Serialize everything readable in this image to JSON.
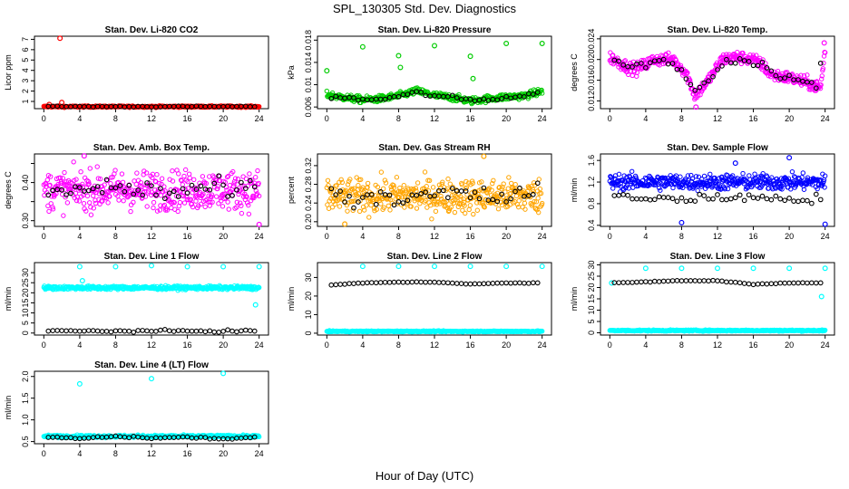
{
  "figure": {
    "title": "SPL_130305  Std. Dev. Diagnostics",
    "xlabel": "Hour of Day (UTC)"
  },
  "colors": {
    "co2": "#ff0000",
    "pressure": "#00cc00",
    "temp": "#ff00ff",
    "rh": "#ffa500",
    "flow": "#0000ff",
    "line": "#00ffff",
    "mean": "#000000"
  },
  "chart_data": [
    {
      "type": "scatter",
      "title": "Stan. Dev. Li-820 CO2",
      "ylabel": "Licor ppm",
      "xlim": [
        0,
        24
      ],
      "ylim": [
        0.3,
        7.3
      ],
      "xticks": [
        "0",
        "4",
        "8",
        "12",
        "16",
        "20",
        "24"
      ],
      "yticks": [
        1,
        2,
        3,
        4,
        5,
        6,
        7
      ],
      "color": "co2",
      "baseline": 0.5,
      "spread": 0.05,
      "outliers": [
        {
          "x": 1.8,
          "y": 7.1
        },
        {
          "x": 0.6,
          "y": 0.7
        },
        {
          "x": 2.0,
          "y": 0.9
        }
      ],
      "mean_series": [
        {
          "x": 0.5,
          "y": 0.5
        },
        {
          "x": 4,
          "y": 0.5
        },
        {
          "x": 8,
          "y": 0.5
        },
        {
          "x": 12,
          "y": 0.5
        },
        {
          "x": 16,
          "y": 0.5
        },
        {
          "x": 20,
          "y": 0.5
        },
        {
          "x": 23.8,
          "y": 0.5
        }
      ]
    },
    {
      "type": "scatter",
      "title": "Stan. Dev. Li-820 Pressure",
      "ylabel": "kPa",
      "xlim": [
        0,
        24
      ],
      "ylim": [
        0.0057,
        0.0187
      ],
      "xticks": [
        "0",
        "4",
        "8",
        "12",
        "16",
        "20",
        "24"
      ],
      "yticks": [
        0.006,
        0.01,
        0.014,
        0.018
      ],
      "color": "pressure",
      "baseline_series": [
        {
          "x": 0,
          "y": 0.0082
        },
        {
          "x": 2,
          "y": 0.0077
        },
        {
          "x": 4,
          "y": 0.0073
        },
        {
          "x": 6,
          "y": 0.0075
        },
        {
          "x": 8,
          "y": 0.008
        },
        {
          "x": 10,
          "y": 0.0089
        },
        {
          "x": 12,
          "y": 0.0081
        },
        {
          "x": 14,
          "y": 0.0077
        },
        {
          "x": 16,
          "y": 0.0071
        },
        {
          "x": 18,
          "y": 0.0075
        },
        {
          "x": 20,
          "y": 0.0078
        },
        {
          "x": 22,
          "y": 0.008
        },
        {
          "x": 24,
          "y": 0.0088
        }
      ],
      "spread": 0.0004,
      "outliers": [
        {
          "x": 0,
          "y": 0.0125
        },
        {
          "x": 4,
          "y": 0.0168
        },
        {
          "x": 8,
          "y": 0.0152
        },
        {
          "x": 8.2,
          "y": 0.0131
        },
        {
          "x": 12,
          "y": 0.017
        },
        {
          "x": 16,
          "y": 0.0151
        },
        {
          "x": 16.3,
          "y": 0.0111
        },
        {
          "x": 20,
          "y": 0.0174
        },
        {
          "x": 24,
          "y": 0.0174
        }
      ],
      "mean_series": [
        {
          "x": 0.5,
          "y": 0.0078
        },
        {
          "x": 2,
          "y": 0.0076
        },
        {
          "x": 4,
          "y": 0.0073
        },
        {
          "x": 6,
          "y": 0.0074
        },
        {
          "x": 8,
          "y": 0.0079
        },
        {
          "x": 10,
          "y": 0.0086
        },
        {
          "x": 12,
          "y": 0.008
        },
        {
          "x": 14,
          "y": 0.0077
        },
        {
          "x": 16,
          "y": 0.0072
        },
        {
          "x": 18,
          "y": 0.0074
        },
        {
          "x": 20,
          "y": 0.0077
        },
        {
          "x": 22,
          "y": 0.008
        },
        {
          "x": 23.8,
          "y": 0.0086
        }
      ]
    },
    {
      "type": "scatter",
      "title": "Stan. Dev. Li-820 Temp.",
      "ylabel": "degrees C",
      "xlim": [
        0,
        24
      ],
      "ylim": [
        0.0105,
        0.0245
      ],
      "xticks": [
        "0",
        "4",
        "8",
        "12",
        "16",
        "20",
        "24"
      ],
      "yticks": [
        0.012,
        0.016,
        0.02,
        0.024
      ],
      "ytick_labels": [
        "0.012",
        "0.016",
        "0.020",
        "0.024"
      ],
      "color": "temp",
      "baseline_series": [
        {
          "x": 0,
          "y": 0.0205
        },
        {
          "x": 2,
          "y": 0.0185
        },
        {
          "x": 3,
          "y": 0.0182
        },
        {
          "x": 5,
          "y": 0.02
        },
        {
          "x": 7,
          "y": 0.02
        },
        {
          "x": 8.5,
          "y": 0.0175
        },
        {
          "x": 9.5,
          "y": 0.013
        },
        {
          "x": 11,
          "y": 0.016
        },
        {
          "x": 12.5,
          "y": 0.02
        },
        {
          "x": 14,
          "y": 0.0205
        },
        {
          "x": 16,
          "y": 0.02
        },
        {
          "x": 17,
          "y": 0.019
        },
        {
          "x": 18,
          "y": 0.017
        },
        {
          "x": 20,
          "y": 0.0165
        },
        {
          "x": 22,
          "y": 0.0155
        },
        {
          "x": 23.5,
          "y": 0.0145
        },
        {
          "x": 24,
          "y": 0.022
        }
      ],
      "spread": 0.0008,
      "outliers": [
        {
          "x": 9.6,
          "y": 0.0108
        },
        {
          "x": 23.9,
          "y": 0.0232
        }
      ],
      "mean_series": [
        {
          "x": 0.5,
          "y": 0.0198
        },
        {
          "x": 2,
          "y": 0.0187
        },
        {
          "x": 4,
          "y": 0.019
        },
        {
          "x": 6,
          "y": 0.02
        },
        {
          "x": 8,
          "y": 0.018
        },
        {
          "x": 9.5,
          "y": 0.014
        },
        {
          "x": 11,
          "y": 0.016
        },
        {
          "x": 13,
          "y": 0.02
        },
        {
          "x": 15,
          "y": 0.0198
        },
        {
          "x": 17,
          "y": 0.019
        },
        {
          "x": 19,
          "y": 0.017
        },
        {
          "x": 21,
          "y": 0.016
        },
        {
          "x": 23,
          "y": 0.015
        },
        {
          "x": 23.9,
          "y": 0.0215
        }
      ]
    },
    {
      "type": "scatter",
      "title": "Stan. Dev. Amb. Box Temp.",
      "ylabel": "degrees C",
      "xlim": [
        0,
        24
      ],
      "ylim": [
        0.285,
        0.475
      ],
      "xticks": [
        "0",
        "4",
        "8",
        "12",
        "16",
        "20",
        "24"
      ],
      "yticks": [
        0.3,
        0.35,
        0.4,
        0.45
      ],
      "ytick_labels": [
        "0.30",
        "",
        "0.40",
        ""
      ],
      "color": "temp",
      "baseline": 0.38,
      "spread": 0.035,
      "outliers": [
        {
          "x": 4.5,
          "y": 0.47
        },
        {
          "x": 24,
          "y": 0.29
        }
      ],
      "mean_series": [
        {
          "x": 0.5,
          "y": 0.38
        },
        {
          "x": 3,
          "y": 0.37
        },
        {
          "x": 6,
          "y": 0.39
        },
        {
          "x": 9,
          "y": 0.38
        },
        {
          "x": 12,
          "y": 0.38
        },
        {
          "x": 15,
          "y": 0.37
        },
        {
          "x": 18,
          "y": 0.39
        },
        {
          "x": 21,
          "y": 0.37
        },
        {
          "x": 23.8,
          "y": 0.39
        }
      ]
    },
    {
      "type": "scatter",
      "title": "Stan. Dev. Gas Stream RH",
      "ylabel": "percent",
      "xlim": [
        0,
        24
      ],
      "ylim": [
        0.19,
        0.345
      ],
      "xticks": [
        "0",
        "4",
        "8",
        "12",
        "16",
        "20",
        "24"
      ],
      "yticks": [
        0.2,
        0.24,
        0.28,
        0.32
      ],
      "ytick_labels": [
        "0.20",
        "0.24",
        "0.28",
        "0.32"
      ],
      "color": "rh",
      "baseline": 0.255,
      "spread": 0.025,
      "outliers": [
        {
          "x": 17.5,
          "y": 0.34
        },
        {
          "x": 2,
          "y": 0.195
        }
      ],
      "mean_series": [
        {
          "x": 0.5,
          "y": 0.26
        },
        {
          "x": 3,
          "y": 0.25
        },
        {
          "x": 6,
          "y": 0.26
        },
        {
          "x": 9,
          "y": 0.25
        },
        {
          "x": 12,
          "y": 0.255
        },
        {
          "x": 15,
          "y": 0.26
        },
        {
          "x": 18,
          "y": 0.25
        },
        {
          "x": 21,
          "y": 0.255
        },
        {
          "x": 23.8,
          "y": 0.27
        }
      ]
    },
    {
      "type": "scatter",
      "title": "Stan. Dev. Sample Flow",
      "ylabel": "ml/min",
      "xlim": [
        0,
        24
      ],
      "ylim": [
        0.38,
        1.72
      ],
      "xticks": [
        "0",
        "4",
        "8",
        "12",
        "16",
        "20",
        "24"
      ],
      "yticks": [
        0.4,
        0.8,
        1.2,
        1.6
      ],
      "ytick_labels": [
        "0.4",
        "0.8",
        "1.2",
        "1.6"
      ],
      "color": "flow",
      "baseline": 1.2,
      "spread": 0.1,
      "outliers": [
        {
          "x": 8,
          "y": 0.45
        },
        {
          "x": 14,
          "y": 1.55
        },
        {
          "x": 20,
          "y": 1.65
        },
        {
          "x": 24,
          "y": 0.42
        }
      ],
      "mean_series": [
        {
          "x": 0.5,
          "y": 0.95
        },
        {
          "x": 3,
          "y": 0.9
        },
        {
          "x": 6,
          "y": 0.92
        },
        {
          "x": 9,
          "y": 0.85
        },
        {
          "x": 12,
          "y": 0.95
        },
        {
          "x": 15,
          "y": 0.9
        },
        {
          "x": 18,
          "y": 0.92
        },
        {
          "x": 21,
          "y": 0.88
        },
        {
          "x": 23.8,
          "y": 0.92
        }
      ]
    },
    {
      "type": "scatter",
      "title": "Stan. Dev. Line 1 Flow",
      "ylabel": "ml/min",
      "xlim": [
        0,
        24
      ],
      "ylim": [
        -1,
        35
      ],
      "xticks": [
        "0",
        "4",
        "8",
        "12",
        "16",
        "20",
        "24"
      ],
      "yticks": [
        0,
        5,
        10,
        15,
        20,
        25,
        30
      ],
      "color": "line",
      "baseline": 22.5,
      "spread": 0.6,
      "outliers": [
        {
          "x": 4,
          "y": 33
        },
        {
          "x": 8,
          "y": 33
        },
        {
          "x": 12,
          "y": 33.5
        },
        {
          "x": 16,
          "y": 33
        },
        {
          "x": 20,
          "y": 33
        },
        {
          "x": 24,
          "y": 33
        },
        {
          "x": 23.6,
          "y": 14
        },
        {
          "x": 4.3,
          "y": 26
        }
      ],
      "mean_series": [
        {
          "x": 0.5,
          "y": 1
        },
        {
          "x": 4,
          "y": 1
        },
        {
          "x": 8,
          "y": 1
        },
        {
          "x": 12,
          "y": 1
        },
        {
          "x": 16,
          "y": 1
        },
        {
          "x": 20,
          "y": 1
        },
        {
          "x": 23.8,
          "y": 1
        }
      ]
    },
    {
      "type": "scatter",
      "title": "Stan. Dev. Line 2 Flow",
      "ylabel": "ml/min",
      "xlim": [
        0,
        24
      ],
      "ylim": [
        -1,
        38
      ],
      "xticks": [
        "0",
        "4",
        "8",
        "12",
        "16",
        "20",
        "24"
      ],
      "yticks": [
        0,
        10,
        20,
        30
      ],
      "color": "line",
      "baseline": 1,
      "spread": 0.2,
      "outliers": [
        {
          "x": 4,
          "y": 36
        },
        {
          "x": 8,
          "y": 36
        },
        {
          "x": 12,
          "y": 36
        },
        {
          "x": 16,
          "y": 36
        },
        {
          "x": 20,
          "y": 36
        },
        {
          "x": 24,
          "y": 36
        }
      ],
      "mean_series": [
        {
          "x": 0.5,
          "y": 26
        },
        {
          "x": 4,
          "y": 27
        },
        {
          "x": 8,
          "y": 27.5
        },
        {
          "x": 12,
          "y": 27.5
        },
        {
          "x": 16,
          "y": 26.5
        },
        {
          "x": 20,
          "y": 27
        },
        {
          "x": 23.8,
          "y": 27
        }
      ]
    },
    {
      "type": "scatter",
      "title": "Stan. Dev. Line 3 Flow",
      "ylabel": "ml/min",
      "xlim": [
        0,
        24
      ],
      "ylim": [
        -1,
        31
      ],
      "xticks": [
        "0",
        "4",
        "8",
        "12",
        "16",
        "20",
        "24"
      ],
      "yticks": [
        0,
        5,
        10,
        15,
        20,
        25,
        30
      ],
      "color": "line",
      "baseline": 1,
      "spread": 0.2,
      "outliers": [
        {
          "x": 4,
          "y": 28.5
        },
        {
          "x": 8,
          "y": 28.5
        },
        {
          "x": 12,
          "y": 28.5
        },
        {
          "x": 16,
          "y": 28.5
        },
        {
          "x": 20,
          "y": 28.5
        },
        {
          "x": 24,
          "y": 28.5
        },
        {
          "x": 23.6,
          "y": 16
        },
        {
          "x": 0.2,
          "y": 22
        }
      ],
      "mean_series": [
        {
          "x": 0.5,
          "y": 22
        },
        {
          "x": 4,
          "y": 22.5
        },
        {
          "x": 8,
          "y": 23
        },
        {
          "x": 12,
          "y": 23
        },
        {
          "x": 16,
          "y": 21.5
        },
        {
          "x": 20,
          "y": 22
        },
        {
          "x": 23.8,
          "y": 22
        }
      ]
    },
    {
      "type": "scatter",
      "title": "Stan. Dev. Line 4 (LT) Flow",
      "ylabel": "ml/min",
      "xlim": [
        0,
        24
      ],
      "ylim": [
        0.45,
        2.12
      ],
      "xticks": [
        "0",
        "4",
        "8",
        "12",
        "16",
        "20",
        "24"
      ],
      "yticks": [
        0.5,
        1.0,
        1.5,
        2.0
      ],
      "ytick_labels": [
        "0.5",
        "1.0",
        "1.5",
        "2.0"
      ],
      "color": "line",
      "baseline": 0.62,
      "spread": 0.02,
      "outliers": [
        {
          "x": 4,
          "y": 1.83
        },
        {
          "x": 12,
          "y": 1.95
        },
        {
          "x": 20,
          "y": 2.07
        }
      ],
      "mean_series": [
        {
          "x": 0.5,
          "y": 0.6
        },
        {
          "x": 4,
          "y": 0.57
        },
        {
          "x": 8,
          "y": 0.62
        },
        {
          "x": 12,
          "y": 0.58
        },
        {
          "x": 16,
          "y": 0.6
        },
        {
          "x": 20,
          "y": 0.56
        },
        {
          "x": 23.8,
          "y": 0.6
        }
      ]
    }
  ]
}
